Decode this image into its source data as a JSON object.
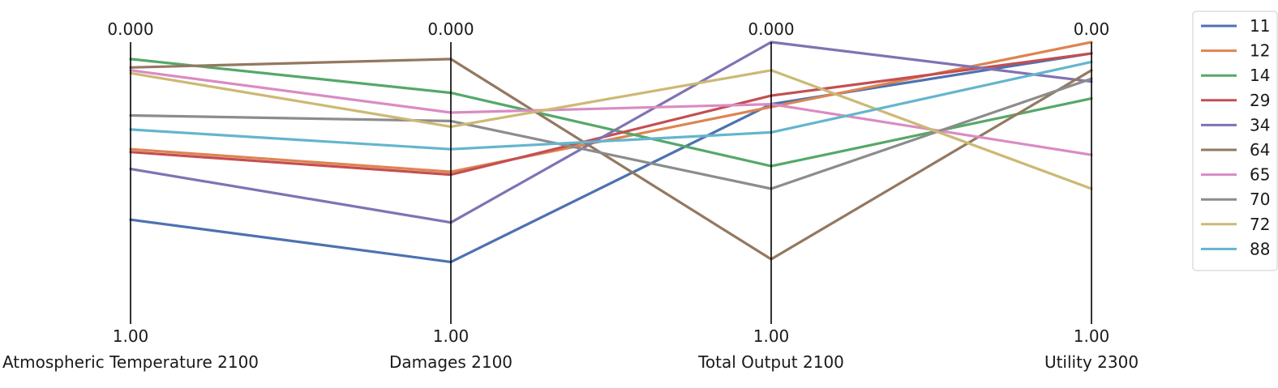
{
  "chart_data": {
    "type": "parallel-coordinates",
    "axes": [
      {
        "label": "Atmospheric Temperature 2100",
        "top_tick": "0.000",
        "bottom_tick": "1.00"
      },
      {
        "label": "Damages 2100",
        "top_tick": "0.000",
        "bottom_tick": "1.00"
      },
      {
        "label": "Total Output 2100",
        "top_tick": "0.000",
        "bottom_tick": "1.00"
      },
      {
        "label": "Utility 2300",
        "top_tick": "0.00",
        "bottom_tick": "1.00"
      }
    ],
    "range": [
      0,
      1
    ],
    "orientation": "inverted (0 at top, 1 at bottom)",
    "legend_position": "top-right",
    "series": [
      {
        "name": "11",
        "color": "#4c72b0",
        "values": [
          0.63,
          0.78,
          0.22,
          0.04
        ]
      },
      {
        "name": "12",
        "color": "#dd8452",
        "values": [
          0.38,
          0.46,
          0.23,
          0.0
        ]
      },
      {
        "name": "14",
        "color": "#55a868",
        "values": [
          0.06,
          0.18,
          0.44,
          0.2
        ]
      },
      {
        "name": "29",
        "color": "#c44e52",
        "values": [
          0.39,
          0.47,
          0.19,
          0.04
        ]
      },
      {
        "name": "34",
        "color": "#8172b3",
        "values": [
          0.45,
          0.64,
          0.0,
          0.14
        ]
      },
      {
        "name": "64",
        "color": "#937860",
        "values": [
          0.09,
          0.06,
          0.77,
          0.1
        ]
      },
      {
        "name": "65",
        "color": "#da8bc3",
        "values": [
          0.1,
          0.25,
          0.22,
          0.4
        ]
      },
      {
        "name": "70",
        "color": "#8c8c8c",
        "values": [
          0.26,
          0.28,
          0.52,
          0.13
        ]
      },
      {
        "name": "72",
        "color": "#ccb974",
        "values": [
          0.11,
          0.3,
          0.1,
          0.52
        ]
      },
      {
        "name": "88",
        "color": "#64b5cd",
        "values": [
          0.31,
          0.38,
          0.32,
          0.07
        ]
      }
    ]
  }
}
